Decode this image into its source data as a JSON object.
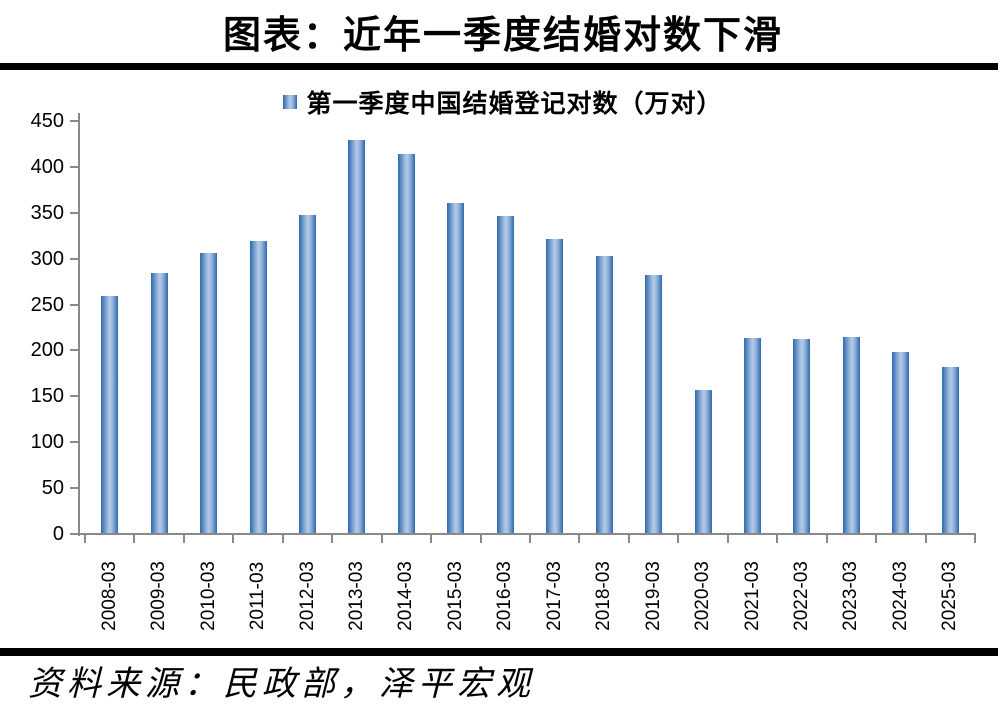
{
  "header": {
    "title": "图表：近年一季度结婚对数下滑"
  },
  "legend": {
    "label": "第一季度中国结婚登记对数（万对）",
    "marker_color": "#3f6fb3"
  },
  "footer": {
    "source": "资料来源：民政部，泽平宏观"
  },
  "colors": {
    "bar_edge": "#2f68b0",
    "bar_mid": "#adc8e6",
    "axis": "#898989",
    "rule": "#000000",
    "text": "#000000",
    "background": "#ffffff"
  },
  "chart_data": {
    "type": "bar",
    "title": "图表：近年一季度结婚对数下滑",
    "legend": [
      "第一季度中国结婚登记对数（万对）"
    ],
    "legend_position": "top",
    "categories": [
      "2008-03",
      "2009-03",
      "2010-03",
      "2011-03",
      "2012-03",
      "2013-03",
      "2014-03",
      "2015-03",
      "2016-03",
      "2017-03",
      "2018-03",
      "2019-03",
      "2020-03",
      "2021-03",
      "2022-03",
      "2023-03",
      "2024-03",
      "2025-03"
    ],
    "values": [
      258,
      283,
      305,
      318,
      347,
      428,
      413,
      360,
      345,
      320,
      302,
      281,
      156,
      213,
      211,
      214,
      197,
      181
    ],
    "xlabel": "",
    "ylabel": "",
    "ylim": [
      0,
      450
    ],
    "ytick_step": 50,
    "ytick_labels": [
      "0",
      "50",
      "100",
      "150",
      "200",
      "250",
      "300",
      "350",
      "400",
      "450"
    ],
    "grid": false,
    "source": "资料来源：民政部，泽平宏观"
  }
}
